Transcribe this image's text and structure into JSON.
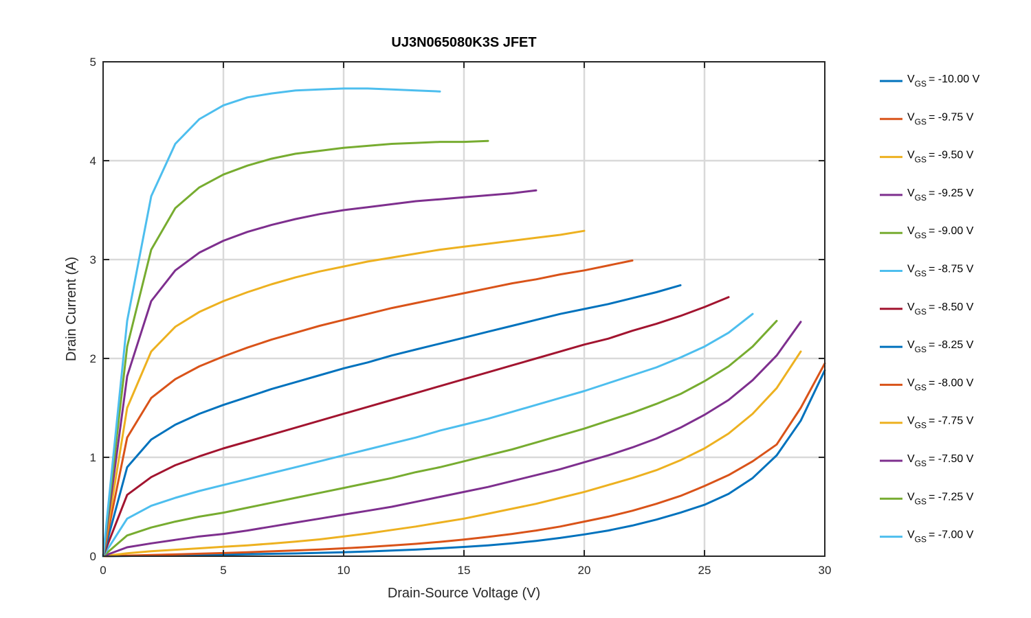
{
  "chart_data": {
    "type": "line",
    "title": "UJ3N065080K3S JFET",
    "xlabel": "Drain-Source Voltage (V)",
    "ylabel": "Drain Current (A)",
    "xlim": [
      0,
      30
    ],
    "ylim": [
      0,
      5
    ],
    "xticks": [
      "0",
      "5",
      "10",
      "15",
      "20",
      "25",
      "30"
    ],
    "yticks": [
      "0",
      "1",
      "2",
      "3",
      "4",
      "5"
    ],
    "grid": true,
    "legend_position": "outside-right",
    "legend_prefix": "V",
    "legend_subscript": "GS",
    "series": [
      {
        "name": "= -10.00 V",
        "color": "#0072BD",
        "x": [
          0,
          1,
          2,
          3,
          4,
          5,
          6,
          7,
          8,
          9,
          10,
          11,
          12,
          13,
          14,
          15,
          16,
          17,
          18,
          19,
          20,
          21,
          22,
          23,
          24,
          25,
          26,
          27,
          28,
          29,
          30
        ],
        "y": [
          0,
          0.003,
          0.006,
          0.009,
          0.012,
          0.016,
          0.02,
          0.024,
          0.028,
          0.034,
          0.04,
          0.048,
          0.057,
          0.067,
          0.08,
          0.094,
          0.11,
          0.13,
          0.155,
          0.185,
          0.22,
          0.26,
          0.31,
          0.37,
          0.44,
          0.52,
          0.63,
          0.79,
          1.02,
          1.37,
          1.88
        ]
      },
      {
        "name": "= -9.75 V",
        "color": "#D95319",
        "x": [
          0,
          1,
          2,
          3,
          4,
          5,
          6,
          7,
          8,
          9,
          10,
          11,
          12,
          13,
          14,
          15,
          16,
          17,
          18,
          19,
          20,
          21,
          22,
          23,
          24,
          25,
          26,
          27,
          28,
          29,
          30
        ],
        "y": [
          0,
          0.006,
          0.012,
          0.018,
          0.025,
          0.032,
          0.04,
          0.049,
          0.058,
          0.068,
          0.08,
          0.093,
          0.108,
          0.125,
          0.145,
          0.168,
          0.195,
          0.225,
          0.26,
          0.3,
          0.35,
          0.4,
          0.46,
          0.53,
          0.61,
          0.71,
          0.82,
          0.96,
          1.13,
          1.5,
          1.95
        ]
      },
      {
        "name": "= -9.50 V",
        "color": "#EDB120",
        "x": [
          0,
          1,
          2,
          3,
          4,
          5,
          6,
          7,
          8,
          9,
          10,
          11,
          12,
          13,
          14,
          15,
          16,
          17,
          18,
          19,
          20,
          21,
          22,
          23,
          24,
          25,
          26,
          27,
          28,
          29
        ],
        "y": [
          0,
          0.03,
          0.05,
          0.065,
          0.08,
          0.095,
          0.11,
          0.128,
          0.148,
          0.17,
          0.2,
          0.23,
          0.265,
          0.3,
          0.34,
          0.38,
          0.43,
          0.48,
          0.53,
          0.59,
          0.65,
          0.72,
          0.79,
          0.87,
          0.97,
          1.09,
          1.24,
          1.44,
          1.7,
          2.07
        ]
      },
      {
        "name": "= -9.25 V",
        "color": "#7E2F8E",
        "x": [
          0,
          1,
          2,
          3,
          4,
          5,
          6,
          7,
          8,
          9,
          10,
          11,
          12,
          13,
          14,
          15,
          16,
          17,
          18,
          19,
          20,
          21,
          22,
          23,
          24,
          25,
          26,
          27,
          28,
          29
        ],
        "y": [
          0,
          0.09,
          0.13,
          0.165,
          0.2,
          0.225,
          0.26,
          0.3,
          0.34,
          0.38,
          0.42,
          0.46,
          0.5,
          0.55,
          0.6,
          0.65,
          0.7,
          0.76,
          0.82,
          0.88,
          0.95,
          1.02,
          1.1,
          1.19,
          1.3,
          1.43,
          1.58,
          1.78,
          2.03,
          2.37
        ]
      },
      {
        "name": "= -9.00 V",
        "color": "#77AC30",
        "x": [
          0,
          1,
          2,
          3,
          4,
          5,
          6,
          7,
          8,
          9,
          10,
          11,
          12,
          13,
          14,
          15,
          16,
          17,
          18,
          19,
          20,
          21,
          22,
          23,
          24,
          25,
          26,
          27,
          28
        ],
        "y": [
          0,
          0.21,
          0.29,
          0.35,
          0.4,
          0.44,
          0.49,
          0.54,
          0.59,
          0.64,
          0.69,
          0.74,
          0.79,
          0.85,
          0.9,
          0.96,
          1.02,
          1.08,
          1.15,
          1.22,
          1.29,
          1.37,
          1.45,
          1.54,
          1.64,
          1.77,
          1.92,
          2.12,
          2.38
        ]
      },
      {
        "name": "= -8.75 V",
        "color": "#4DBEEE",
        "x": [
          0,
          1,
          2,
          3,
          4,
          5,
          6,
          7,
          8,
          9,
          10,
          11,
          12,
          13,
          14,
          15,
          16,
          17,
          18,
          19,
          20,
          21,
          22,
          23,
          24,
          25,
          26,
          27
        ],
        "y": [
          0,
          0.38,
          0.51,
          0.59,
          0.66,
          0.72,
          0.78,
          0.84,
          0.9,
          0.96,
          1.02,
          1.08,
          1.14,
          1.2,
          1.27,
          1.33,
          1.39,
          1.46,
          1.53,
          1.6,
          1.67,
          1.75,
          1.83,
          1.91,
          2.01,
          2.12,
          2.26,
          2.45
        ]
      },
      {
        "name": "= -8.50 V",
        "color": "#A2142F",
        "x": [
          0,
          1,
          2,
          3,
          4,
          5,
          6,
          7,
          8,
          9,
          10,
          11,
          12,
          13,
          14,
          15,
          16,
          17,
          18,
          19,
          20,
          21,
          22,
          23,
          24,
          25,
          26
        ],
        "y": [
          0,
          0.62,
          0.8,
          0.92,
          1.01,
          1.09,
          1.16,
          1.23,
          1.3,
          1.37,
          1.44,
          1.51,
          1.58,
          1.65,
          1.72,
          1.79,
          1.86,
          1.93,
          2.0,
          2.07,
          2.14,
          2.2,
          2.28,
          2.35,
          2.43,
          2.52,
          2.62
        ]
      },
      {
        "name": "= -8.25 V",
        "color": "#0072BD",
        "x": [
          0,
          1,
          2,
          3,
          4,
          5,
          6,
          7,
          8,
          9,
          10,
          11,
          12,
          13,
          14,
          15,
          16,
          17,
          18,
          19,
          20,
          21,
          22,
          23,
          24
        ],
        "y": [
          0,
          0.9,
          1.18,
          1.33,
          1.44,
          1.53,
          1.61,
          1.69,
          1.76,
          1.83,
          1.9,
          1.96,
          2.03,
          2.09,
          2.15,
          2.21,
          2.27,
          2.33,
          2.39,
          2.45,
          2.5,
          2.55,
          2.61,
          2.67,
          2.74
        ]
      },
      {
        "name": "= -8.00 V",
        "color": "#D95319",
        "x": [
          0,
          1,
          2,
          3,
          4,
          5,
          6,
          7,
          8,
          9,
          10,
          11,
          12,
          13,
          14,
          15,
          16,
          17,
          18,
          19,
          20,
          21,
          22
        ],
        "y": [
          0,
          1.2,
          1.6,
          1.79,
          1.92,
          2.02,
          2.11,
          2.19,
          2.26,
          2.33,
          2.39,
          2.45,
          2.51,
          2.56,
          2.61,
          2.66,
          2.71,
          2.76,
          2.8,
          2.85,
          2.89,
          2.94,
          2.99
        ]
      },
      {
        "name": "= -7.75 V",
        "color": "#EDB120",
        "x": [
          0,
          1,
          2,
          3,
          4,
          5,
          6,
          7,
          8,
          9,
          10,
          11,
          12,
          13,
          14,
          15,
          16,
          17,
          18,
          19,
          20
        ],
        "y": [
          0,
          1.5,
          2.07,
          2.32,
          2.47,
          2.58,
          2.67,
          2.75,
          2.82,
          2.88,
          2.93,
          2.98,
          3.02,
          3.06,
          3.1,
          3.13,
          3.16,
          3.19,
          3.22,
          3.25,
          3.29
        ]
      },
      {
        "name": "= -7.50 V",
        "color": "#7E2F8E",
        "x": [
          0,
          1,
          2,
          3,
          4,
          5,
          6,
          7,
          8,
          9,
          10,
          11,
          12,
          13,
          14,
          15,
          16,
          17,
          18
        ],
        "y": [
          0,
          1.82,
          2.58,
          2.89,
          3.07,
          3.19,
          3.28,
          3.35,
          3.41,
          3.46,
          3.5,
          3.53,
          3.56,
          3.59,
          3.61,
          3.63,
          3.65,
          3.67,
          3.7
        ]
      },
      {
        "name": "= -7.25 V",
        "color": "#77AC30",
        "x": [
          0,
          1,
          2,
          3,
          4,
          5,
          6,
          7,
          8,
          9,
          10,
          11,
          12,
          13,
          14,
          15,
          16
        ],
        "y": [
          0,
          2.12,
          3.1,
          3.52,
          3.73,
          3.86,
          3.95,
          4.02,
          4.07,
          4.1,
          4.13,
          4.15,
          4.17,
          4.18,
          4.19,
          4.19,
          4.2
        ]
      },
      {
        "name": "= -7.00 V",
        "color": "#4DBEEE",
        "x": [
          0,
          1,
          2,
          3,
          4,
          5,
          6,
          7,
          8,
          9,
          10,
          11,
          12,
          13,
          14
        ],
        "y": [
          0,
          2.38,
          3.64,
          4.17,
          4.42,
          4.56,
          4.64,
          4.68,
          4.71,
          4.72,
          4.73,
          4.73,
          4.72,
          4.71,
          4.7
        ]
      }
    ]
  }
}
